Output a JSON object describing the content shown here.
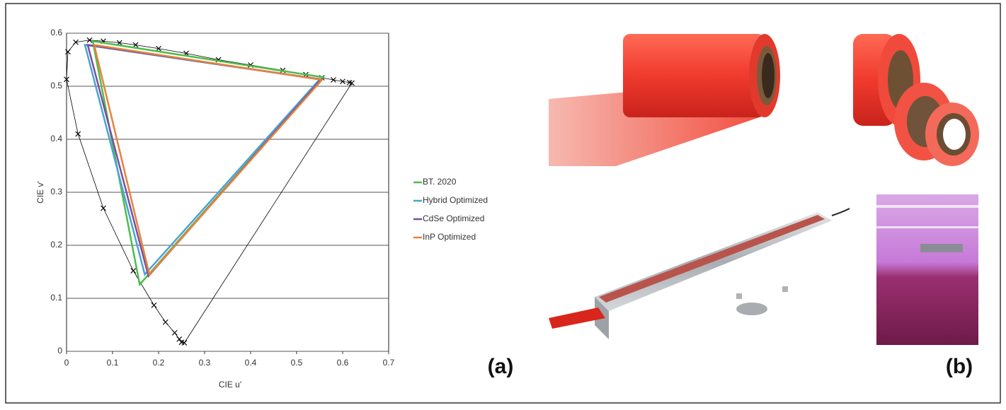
{
  "chart_data": {
    "type": "line",
    "xlabel": "CIE u'",
    "ylabel": "CIE v'",
    "xlim": [
      0,
      0.7
    ],
    "xticks": [
      0,
      0.1,
      0.2,
      0.3,
      0.4,
      0.5,
      0.6,
      0.7
    ],
    "ylim": [
      0,
      0.6
    ],
    "yticks": [
      0,
      0.1,
      0.2,
      0.3,
      0.4,
      0.5,
      0.6
    ],
    "grid": true,
    "legend": "right",
    "series": [
      {
        "name": "BT. 2020",
        "color": "#4dbd4a",
        "closed": true,
        "x": [
          0.557,
          0.057,
          0.159
        ],
        "values": [
          0.517,
          0.585,
          0.126
        ]
      },
      {
        "name": "Hybrid Optimized",
        "color": "#4aa3d4",
        "closed": true,
        "x": [
          0.55,
          0.04,
          0.17
        ],
        "values": [
          0.513,
          0.578,
          0.145
        ]
      },
      {
        "name": "CdSe Optimized",
        "color": "#7a4fa0",
        "closed": true,
        "x": [
          0.553,
          0.046,
          0.178
        ],
        "values": [
          0.513,
          0.578,
          0.142
        ]
      },
      {
        "name": "InP Optimized",
        "color": "#e8823a",
        "closed": true,
        "x": [
          0.555,
          0.06,
          0.18
        ],
        "values": [
          0.512,
          0.578,
          0.145
        ]
      },
      {
        "color": "#000000",
        "closed": true,
        "marker": "x",
        "x": [
          0.256,
          0.25,
          0.245,
          0.235,
          0.215,
          0.19,
          0.145,
          0.08,
          0.025,
          0.0,
          0.003,
          0.02,
          0.05,
          0.08,
          0.115,
          0.15,
          0.2,
          0.26,
          0.33,
          0.4,
          0.47,
          0.52,
          0.555,
          0.58,
          0.6,
          0.615,
          0.62
        ],
        "values": [
          0.016,
          0.017,
          0.023,
          0.035,
          0.055,
          0.087,
          0.152,
          0.27,
          0.41,
          0.513,
          0.565,
          0.583,
          0.587,
          0.585,
          0.582,
          0.578,
          0.571,
          0.562,
          0.55,
          0.54,
          0.53,
          0.522,
          0.516,
          0.512,
          0.509,
          0.507,
          0.506
        ]
      }
    ]
  },
  "panel_labels": [
    "(a)",
    "(b)"
  ]
}
